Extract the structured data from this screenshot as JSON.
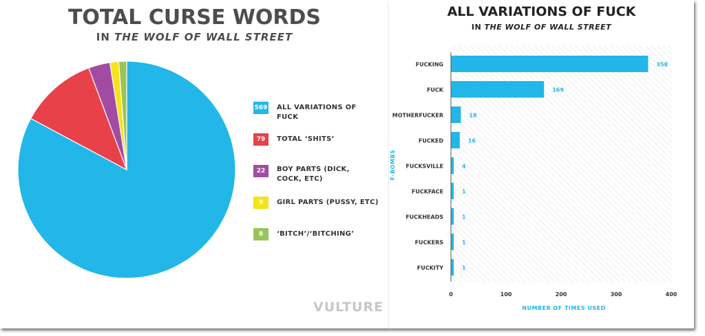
{
  "chart_data": [
    {
      "type": "pie",
      "title": "TOTAL CURSE WORDS",
      "subtitle_prefix": "IN ",
      "subtitle_emphasis": "THE WOLF OF WALL STREET",
      "slices": [
        {
          "label": "ALL VARIATIONS OF FUCK",
          "value": 569,
          "color": "#22b7e8"
        },
        {
          "label": "TOTAL ‘SHITS’",
          "value": 79,
          "color": "#e8414a"
        },
        {
          "label": "BOY PARTS (DICK, COCK, ETC)",
          "value": 22,
          "color": "#a34ba3"
        },
        {
          "label": "GIRL PARTS (PUSSY, ETC)",
          "value": 9,
          "color": "#f6e31a"
        },
        {
          "label": "‘BITCH’/‘BITCHING’",
          "value": 8,
          "color": "#9ac45a"
        }
      ],
      "legend_position": "right"
    },
    {
      "type": "bar",
      "orientation": "horizontal",
      "title": "ALL VARIATIONS OF FUCK",
      "subtitle_prefix": "IN ",
      "subtitle_emphasis": "THE WOLF OF WALL STREET",
      "categories": [
        "FUCKING",
        "FUCK",
        "MOTHERFUCKER",
        "FUCKED",
        "FUCKSVILLE",
        "FUCKFACE",
        "FUCKHEADS",
        "FUCKERS",
        "FUCKITY"
      ],
      "values": [
        358,
        169,
        18,
        16,
        4,
        1,
        1,
        1,
        1
      ],
      "xlabel": "NUMBER OF TIMES USED",
      "ylabel": "F-BOMBS",
      "xlim": [
        0,
        400
      ],
      "xticks": [
        0,
        100,
        200,
        300,
        400
      ],
      "bar_color": "#22b7e8",
      "label_color": "#22b7e8",
      "grid": false,
      "background": "diagonal hatch"
    }
  ],
  "branding": {
    "logo_text": "VULTURE"
  }
}
